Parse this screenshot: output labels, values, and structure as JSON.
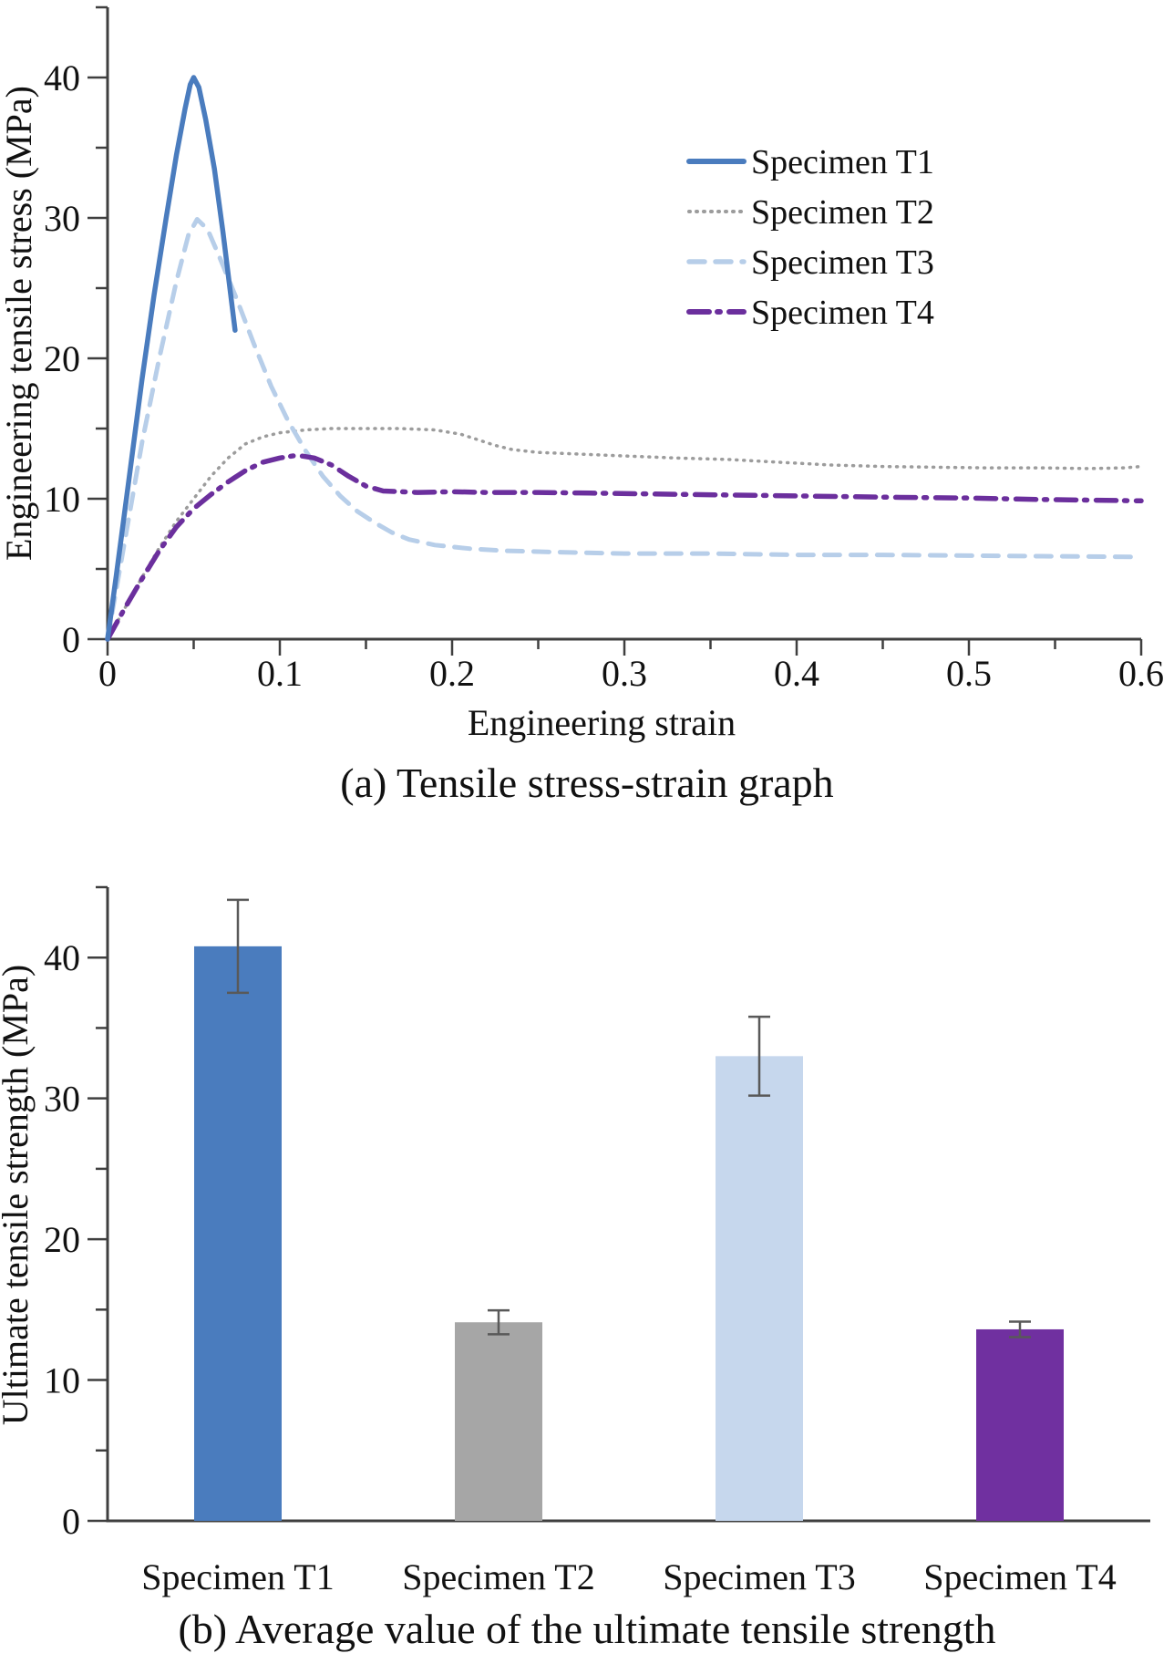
{
  "figure": {
    "caption_a": "(a) Tensile stress-strain graph",
    "caption_b": "(b) Average value of the ultimate tensile strength"
  },
  "style": {
    "axis_color": "#3F3F3F",
    "text_color": "#111111",
    "error_bar_color": "#595959"
  },
  "chart_data": [
    {
      "type": "line",
      "title": "",
      "xlabel": "Engineering strain",
      "ylabel": "Engineering tensile stress (MPa)",
      "xlim": [
        0,
        0.6
      ],
      "ylim": [
        0,
        45
      ],
      "x_ticks": [
        0,
        0.1,
        0.2,
        0.3,
        0.4,
        0.5,
        0.6
      ],
      "y_ticks": [
        0,
        10,
        20,
        30,
        40
      ],
      "x_minor_step": 0.05,
      "y_minor_step": 5,
      "grid": false,
      "legend_position": "upper-right-inside",
      "series": [
        {
          "name": "Specimen T2",
          "color": "#9C9C9C",
          "dash": "dotted",
          "width": 3.5,
          "x": [
            0,
            0.01,
            0.02,
            0.03,
            0.04,
            0.05,
            0.06,
            0.07,
            0.08,
            0.09,
            0.1,
            0.115,
            0.13,
            0.15,
            0.17,
            0.19,
            0.205,
            0.215,
            0.225,
            0.235,
            0.25,
            0.27,
            0.29,
            0.31,
            0.33,
            0.36,
            0.39,
            0.42,
            0.45,
            0.48,
            0.51,
            0.54,
            0.57,
            0.59,
            0.6
          ],
          "y": [
            0,
            2.2,
            4.4,
            6.5,
            8.4,
            10,
            11.6,
            12.9,
            13.9,
            14.4,
            14.7,
            14.9,
            15.0,
            15.0,
            15.0,
            14.9,
            14.6,
            14.2,
            13.8,
            13.5,
            13.3,
            13.2,
            13.1,
            13.0,
            12.9,
            12.8,
            12.6,
            12.4,
            12.3,
            12.25,
            12.2,
            12.2,
            12.15,
            12.2,
            12.3
          ]
        },
        {
          "name": "Specimen T3",
          "color": "#B7CEE9",
          "dash": "dashed",
          "width": 5,
          "x": [
            0,
            0.01,
            0.02,
            0.03,
            0.04,
            0.047,
            0.052,
            0.058,
            0.065,
            0.075,
            0.085,
            0.095,
            0.105,
            0.115,
            0.125,
            0.135,
            0.145,
            0.155,
            0.165,
            0.175,
            0.19,
            0.21,
            0.23,
            0.26,
            0.3,
            0.35,
            0.4,
            0.45,
            0.5,
            0.55,
            0.6
          ],
          "y": [
            0,
            7,
            14,
            20,
            25.5,
            28.8,
            29.9,
            29.2,
            27.2,
            24.2,
            21,
            18,
            15.5,
            13.4,
            11.6,
            10.2,
            9.1,
            8.3,
            7.6,
            7.1,
            6.7,
            6.45,
            6.3,
            6.2,
            6.1,
            6.1,
            6.0,
            6.0,
            5.95,
            5.9,
            5.85
          ]
        },
        {
          "name": "Specimen T4",
          "color": "#6B2F9D",
          "dash": "dashdot",
          "width": 5.5,
          "x": [
            0,
            0.01,
            0.02,
            0.03,
            0.04,
            0.05,
            0.06,
            0.07,
            0.08,
            0.09,
            0.1,
            0.11,
            0.12,
            0.13,
            0.14,
            0.15,
            0.16,
            0.18,
            0.2,
            0.22,
            0.25,
            0.28,
            0.31,
            0.34,
            0.37,
            0.4,
            0.43,
            0.46,
            0.5,
            0.54,
            0.57,
            0.6
          ],
          "y": [
            0,
            2.2,
            4.3,
            6.3,
            8.0,
            9.3,
            10.3,
            11.2,
            12.0,
            12.6,
            12.9,
            13.1,
            12.9,
            12.4,
            11.6,
            10.9,
            10.55,
            10.45,
            10.5,
            10.45,
            10.45,
            10.4,
            10.35,
            10.3,
            10.25,
            10.2,
            10.15,
            10.1,
            10.05,
            9.95,
            9.9,
            9.85
          ]
        },
        {
          "name": "Specimen T1",
          "color": "#4A7CBE",
          "dash": "solid",
          "width": 5.5,
          "x": [
            0,
            0.005,
            0.012,
            0.02,
            0.027,
            0.034,
            0.04,
            0.045,
            0.048,
            0.05,
            0.053,
            0.057,
            0.062,
            0.067,
            0.071,
            0.074
          ],
          "y": [
            0,
            4.5,
            11,
            18.5,
            24.5,
            30,
            34.5,
            37.8,
            39.5,
            40,
            39.3,
            37,
            33.5,
            29,
            25,
            22
          ]
        }
      ],
      "legend_order": [
        "Specimen T1",
        "Specimen T2",
        "Specimen T3",
        "Specimen T4"
      ]
    },
    {
      "type": "bar",
      "title": "",
      "xlabel": "",
      "ylabel": "Ultimate tensile strength (MPa)",
      "ylim": [
        0,
        45
      ],
      "y_ticks": [
        0,
        10,
        20,
        30,
        40
      ],
      "y_minor_step": 5,
      "grid": false,
      "categories": [
        "Specimen T1",
        "Specimen T2",
        "Specimen T3",
        "Specimen T4"
      ],
      "values": [
        40.8,
        14.1,
        33.0,
        13.6
      ],
      "errors": [
        3.3,
        0.85,
        2.8,
        0.55
      ],
      "colors": [
        "#4A7CBE",
        "#A6A6A6",
        "#C6D7ED",
        "#7030A0"
      ]
    }
  ]
}
